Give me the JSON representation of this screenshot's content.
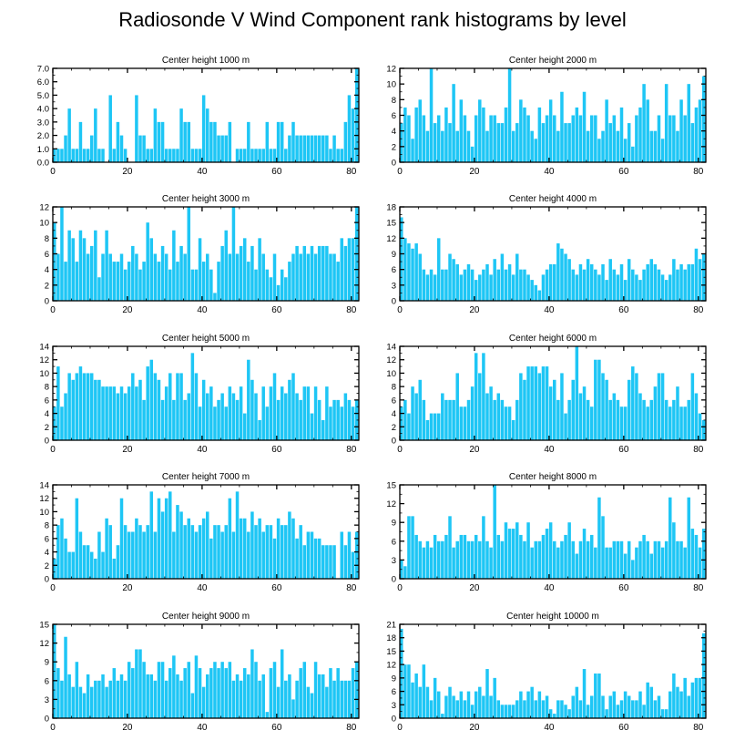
{
  "title": "Radiosonde V Wind Component rank histograms by level",
  "bar_color": "#1ec6f5",
  "chart_data": [
    {
      "type": "bar",
      "title": "Center height 1000 m",
      "xlabel": "",
      "ylabel": "",
      "xlim": [
        0,
        82
      ],
      "ylim": [
        0,
        7
      ],
      "xticks": [
        0,
        20,
        40,
        60,
        80
      ],
      "yticks": [
        "0.0",
        "1.0",
        "2.0",
        "3.0",
        "4.0",
        "5.0",
        "6.0",
        "7.0"
      ],
      "values": [
        1,
        1,
        1,
        2,
        4,
        1,
        1,
        3,
        1,
        1,
        2,
        4,
        1,
        1,
        0,
        5,
        1,
        3,
        2,
        1,
        0,
        0,
        5,
        2,
        2,
        1,
        1,
        4,
        3,
        3,
        1,
        1,
        1,
        1,
        4,
        3,
        3,
        1,
        1,
        1,
        5,
        4,
        3,
        3,
        2,
        2,
        2,
        3,
        0,
        1,
        1,
        1,
        3,
        1,
        1,
        1,
        1,
        3,
        1,
        1,
        3,
        3,
        1,
        2,
        3,
        2,
        2,
        2,
        2,
        2,
        2,
        2,
        2,
        2,
        1,
        2,
        1,
        1,
        3,
        5,
        4,
        7
      ]
    },
    {
      "type": "bar",
      "title": "Center height 2000 m",
      "xlabel": "",
      "ylabel": "",
      "xlim": [
        0,
        82
      ],
      "ylim": [
        0,
        12
      ],
      "xticks": [
        0,
        20,
        40,
        60,
        80
      ],
      "yticks": [
        "0",
        "2",
        "4",
        "6",
        "8",
        "10",
        "12"
      ],
      "values": [
        5,
        7,
        6,
        3,
        7,
        8,
        6,
        4,
        12,
        5,
        6,
        4,
        7,
        5,
        10,
        4,
        8,
        6,
        4,
        2,
        6,
        8,
        7,
        4,
        6,
        6,
        5,
        5,
        7,
        12,
        4,
        5,
        8,
        7,
        6,
        4,
        3,
        7,
        5,
        6,
        8,
        6,
        4,
        9,
        5,
        5,
        6,
        7,
        6,
        9,
        4,
        6,
        6,
        3,
        4,
        8,
        5,
        6,
        4,
        7,
        3,
        5,
        2,
        6,
        7,
        10,
        8,
        4,
        4,
        6,
        3,
        10,
        6,
        6,
        4,
        8,
        6,
        10,
        5,
        7,
        8,
        11
      ]
    },
    {
      "type": "bar",
      "title": "Center height 3000 m",
      "xlabel": "",
      "ylabel": "",
      "xlim": [
        0,
        82
      ],
      "ylim": [
        0,
        12
      ],
      "xticks": [
        0,
        20,
        40,
        60,
        80
      ],
      "yticks": [
        "0",
        "2",
        "4",
        "6",
        "8",
        "10",
        "12"
      ],
      "values": [
        10,
        6,
        12,
        5,
        9,
        8,
        5,
        9,
        8,
        6,
        7,
        9,
        3,
        6,
        9,
        6,
        5,
        5,
        6,
        4,
        5,
        7,
        6,
        4,
        5,
        10,
        8,
        6,
        5,
        7,
        6,
        4,
        9,
        5,
        7,
        6,
        12,
        4,
        4,
        8,
        5,
        6,
        4,
        1,
        5,
        7,
        9,
        6,
        12,
        6,
        7,
        8,
        5,
        7,
        4,
        8,
        6,
        4,
        3,
        6,
        2,
        4,
        3,
        5,
        6,
        7,
        6,
        7,
        6,
        7,
        6,
        7,
        7,
        7,
        6,
        6,
        5,
        8,
        7,
        8,
        8,
        12
      ]
    },
    {
      "type": "bar",
      "title": "Center height 4000 m",
      "xlabel": "",
      "ylabel": "",
      "xlim": [
        0,
        82
      ],
      "ylim": [
        0,
        18
      ],
      "xticks": [
        0,
        20,
        40,
        60,
        80
      ],
      "yticks": [
        "0",
        "3",
        "6",
        "9",
        "12",
        "15",
        "18"
      ],
      "values": [
        16,
        12,
        11,
        10,
        11,
        9,
        6,
        5,
        6,
        5,
        12,
        6,
        6,
        9,
        8,
        7,
        5,
        6,
        7,
        6,
        4,
        5,
        6,
        7,
        5,
        8,
        6,
        9,
        6,
        7,
        5,
        9,
        6,
        6,
        5,
        4,
        3,
        2,
        5,
        6,
        7,
        7,
        11,
        10,
        9,
        8,
        6,
        5,
        7,
        6,
        8,
        7,
        6,
        5,
        7,
        4,
        8,
        6,
        5,
        7,
        4,
        8,
        6,
        5,
        4,
        6,
        7,
        8,
        7,
        6,
        5,
        4,
        5,
        8,
        6,
        7,
        6,
        7,
        7,
        10,
        8,
        9
      ]
    },
    {
      "type": "bar",
      "title": "Center height 5000 m",
      "xlabel": "",
      "ylabel": "",
      "xlim": [
        0,
        82
      ],
      "ylim": [
        0,
        14
      ],
      "xticks": [
        0,
        20,
        40,
        60,
        80
      ],
      "yticks": [
        "0",
        "2",
        "4",
        "6",
        "8",
        "10",
        "12",
        "14"
      ],
      "values": [
        5,
        11,
        5,
        7,
        10,
        9,
        10,
        11,
        10,
        10,
        10,
        9,
        9,
        8,
        8,
        8,
        8,
        7,
        8,
        7,
        8,
        10,
        8,
        9,
        6,
        11,
        12,
        10,
        9,
        6,
        8,
        10,
        6,
        10,
        10,
        6,
        7,
        13,
        10,
        5,
        9,
        7,
        8,
        5,
        6,
        7,
        5,
        8,
        7,
        6,
        8,
        4,
        12,
        9,
        7,
        3,
        8,
        5,
        8,
        10,
        6,
        8,
        7,
        9,
        10,
        7,
        6,
        8,
        8,
        4,
        8,
        6,
        3,
        8,
        5,
        6,
        6,
        5,
        7,
        6,
        5,
        6
      ]
    },
    {
      "type": "bar",
      "title": "Center height 6000 m",
      "xlabel": "",
      "ylabel": "",
      "xlim": [
        0,
        82
      ],
      "ylim": [
        0,
        14
      ],
      "xticks": [
        0,
        20,
        40,
        60,
        80
      ],
      "yticks": [
        "0",
        "2",
        "4",
        "6",
        "8",
        "10",
        "12",
        "14"
      ],
      "values": [
        5,
        6,
        4,
        8,
        7,
        9,
        6,
        3,
        4,
        4,
        4,
        7,
        6,
        6,
        6,
        10,
        5,
        5,
        6,
        8,
        13,
        10,
        13,
        7,
        8,
        6,
        7,
        6,
        5,
        5,
        3,
        6,
        10,
        9,
        11,
        11,
        11,
        10,
        11,
        11,
        8,
        9,
        6,
        10,
        4,
        6,
        9,
        14,
        7,
        8,
        6,
        5,
        12,
        12,
        10,
        9,
        6,
        7,
        6,
        5,
        5,
        9,
        11,
        10,
        7,
        6,
        5,
        6,
        8,
        10,
        10,
        6,
        5,
        6,
        8,
        5,
        5,
        6,
        10,
        7,
        4,
        3
      ]
    },
    {
      "type": "bar",
      "title": "Center height 7000 m",
      "xlabel": "",
      "ylabel": "",
      "xlim": [
        0,
        82
      ],
      "ylim": [
        0,
        14
      ],
      "xticks": [
        0,
        20,
        40,
        60,
        80
      ],
      "yticks": [
        "0",
        "2",
        "4",
        "6",
        "8",
        "10",
        "12",
        "14"
      ],
      "values": [
        3,
        8,
        9,
        6,
        4,
        4,
        12,
        7,
        5,
        5,
        4,
        3,
        7,
        4,
        9,
        8,
        3,
        5,
        12,
        8,
        7,
        7,
        9,
        8,
        7,
        8,
        13,
        7,
        12,
        10,
        12,
        13,
        7,
        11,
        10,
        8,
        9,
        8,
        7,
        8,
        9,
        10,
        6,
        8,
        8,
        7,
        8,
        12,
        7,
        13,
        9,
        9,
        7,
        10,
        8,
        9,
        7,
        8,
        8,
        6,
        9,
        8,
        8,
        10,
        9,
        6,
        8,
        5,
        7,
        7,
        6,
        6,
        5,
        5,
        5,
        5,
        0,
        7,
        5,
        7,
        4,
        7
      ]
    },
    {
      "type": "bar",
      "title": "Center height 8000 m",
      "xlabel": "",
      "ylabel": "",
      "xlim": [
        0,
        82
      ],
      "ylim": [
        0,
        15
      ],
      "xticks": [
        0,
        20,
        40,
        60,
        80
      ],
      "yticks": [
        "0",
        "3",
        "6",
        "9",
        "12",
        "15"
      ],
      "values": [
        3,
        2,
        10,
        10,
        7,
        6,
        5,
        6,
        5,
        7,
        6,
        6,
        7,
        10,
        5,
        6,
        7,
        7,
        6,
        6,
        7,
        6,
        10,
        6,
        5,
        15,
        7,
        6,
        9,
        8,
        8,
        9,
        7,
        6,
        9,
        5,
        6,
        6,
        7,
        8,
        9,
        6,
        5,
        6,
        7,
        9,
        6,
        4,
        6,
        8,
        6,
        7,
        5,
        13,
        10,
        5,
        5,
        6,
        6,
        6,
        4,
        6,
        3,
        5,
        6,
        7,
        6,
        4,
        6,
        6,
        5,
        6,
        13,
        9,
        6,
        6,
        5,
        13,
        8,
        7,
        5,
        8
      ]
    },
    {
      "type": "bar",
      "title": "Center height 9000 m",
      "xlabel": "",
      "ylabel": "",
      "xlim": [
        0,
        82
      ],
      "ylim": [
        0,
        15
      ],
      "xticks": [
        0,
        20,
        40,
        60,
        80
      ],
      "yticks": [
        "0",
        "3",
        "6",
        "9",
        "12",
        "15"
      ],
      "values": [
        15,
        8,
        6,
        13,
        7,
        5,
        9,
        5,
        4,
        7,
        5,
        6,
        6,
        7,
        5,
        6,
        8,
        6,
        7,
        6,
        9,
        8,
        11,
        11,
        9,
        7,
        7,
        6,
        9,
        9,
        6,
        8,
        10,
        7,
        6,
        8,
        9,
        4,
        10,
        8,
        5,
        7,
        8,
        9,
        8,
        9,
        8,
        9,
        6,
        7,
        6,
        8,
        7,
        11,
        9,
        6,
        7,
        1,
        8,
        9,
        5,
        11,
        6,
        7,
        3,
        6,
        8,
        9,
        5,
        4,
        9,
        7,
        7,
        5,
        8,
        6,
        8,
        6,
        6,
        6,
        8,
        9
      ]
    },
    {
      "type": "bar",
      "title": "Center height 10000 m",
      "xlabel": "",
      "ylabel": "",
      "xlim": [
        0,
        82
      ],
      "ylim": [
        0,
        21
      ],
      "xticks": [
        0,
        20,
        40,
        60,
        80
      ],
      "yticks": [
        "0",
        "3",
        "6",
        "9",
        "12",
        "15",
        "18",
        "21"
      ],
      "values": [
        20,
        12,
        12,
        8,
        10,
        7,
        12,
        7,
        4,
        9,
        6,
        1,
        5,
        7,
        5,
        4,
        6,
        4,
        6,
        3,
        6,
        7,
        5,
        11,
        5,
        9,
        4,
        3,
        3,
        3,
        3,
        4,
        6,
        4,
        6,
        7,
        4,
        6,
        4,
        5,
        2,
        1,
        4,
        4,
        3,
        2,
        5,
        7,
        4,
        11,
        3,
        5,
        10,
        10,
        5,
        2,
        5,
        6,
        3,
        4,
        6,
        5,
        4,
        4,
        6,
        3,
        8,
        7,
        4,
        5,
        2,
        2,
        6,
        10,
        7,
        6,
        9,
        5,
        8,
        9,
        9,
        19
      ]
    }
  ]
}
